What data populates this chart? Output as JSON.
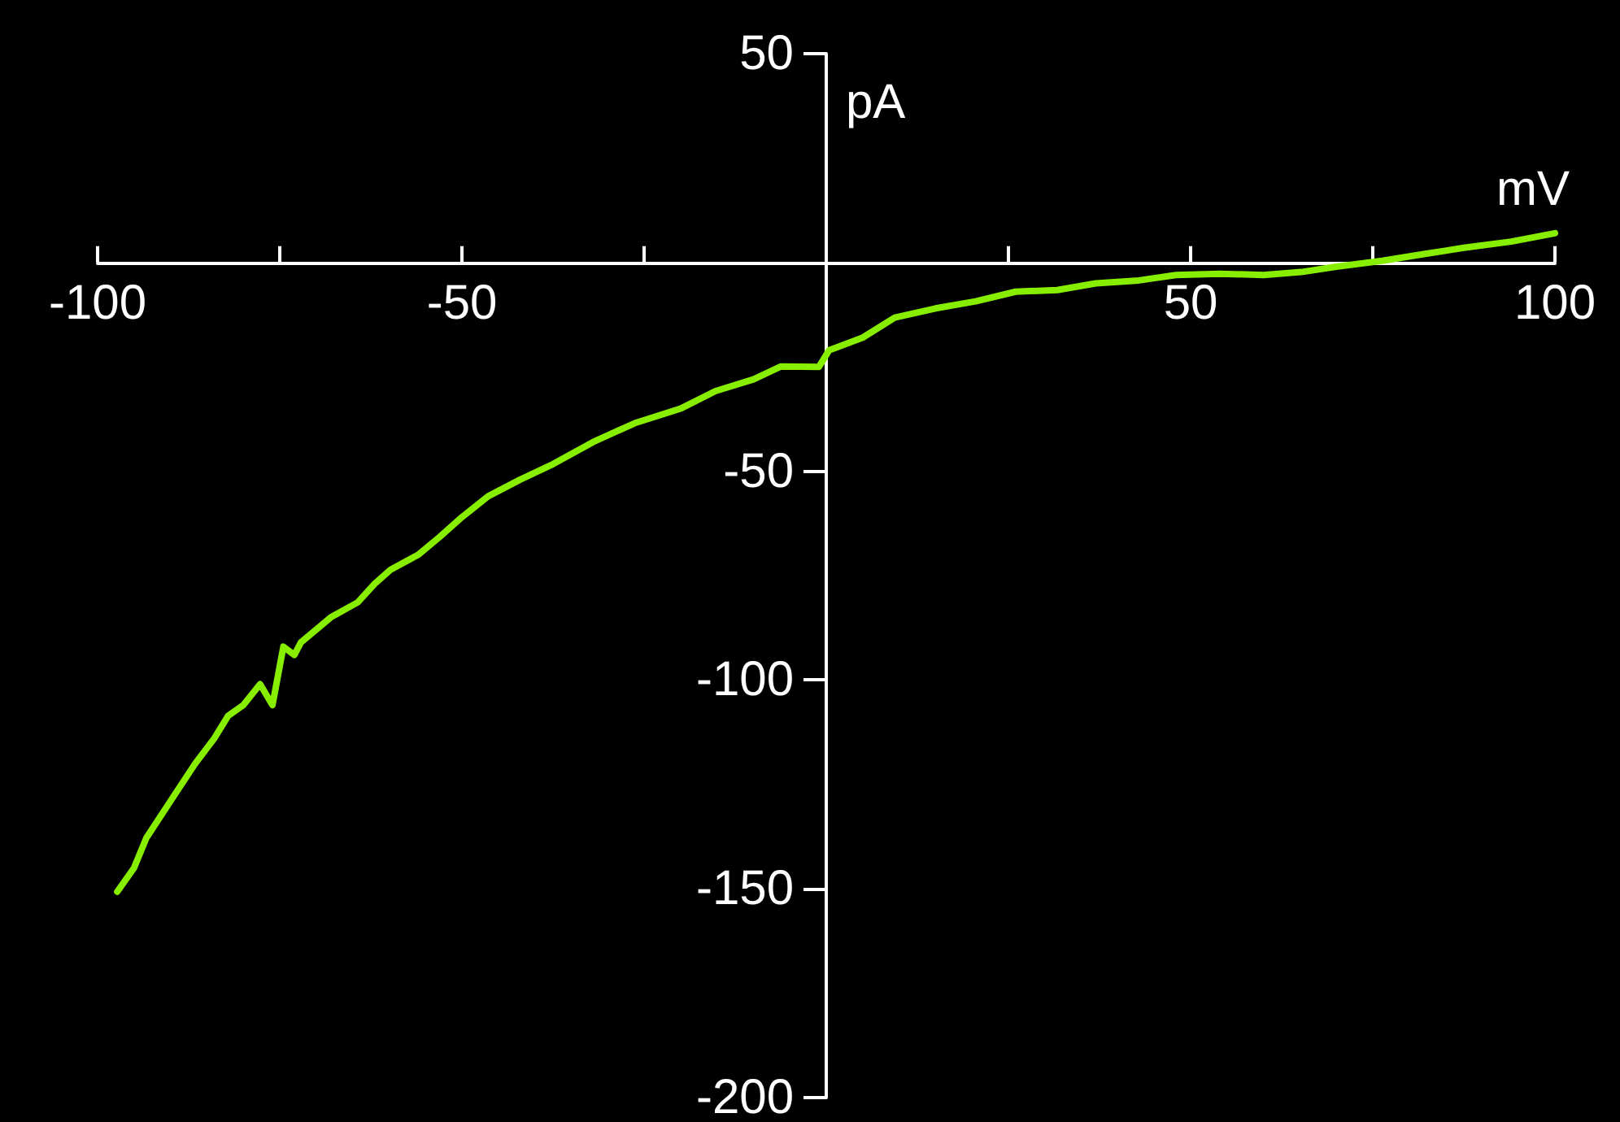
{
  "chart_data": {
    "type": "line",
    "xlabel": "mV",
    "ylabel": "pA",
    "x": [
      -97.3,
      -95,
      -93.3,
      -90,
      -86.6,
      -84,
      -82.1,
      -80,
      -77.7,
      -76,
      -74.5,
      -73,
      -72.1,
      -68,
      -64.3,
      -62,
      -59.8,
      -56,
      -53.1,
      -50,
      -46.4,
      -42,
      -37.5,
      -32,
      -26.3,
      -20,
      -15.2,
      -10,
      -6.2,
      -1,
      0.4,
      5,
      9.4,
      15,
      20.5,
      26,
      31.7,
      37,
      42.9,
      48,
      54,
      60,
      65.2,
      70,
      76.3,
      82,
      87.5,
      94,
      100
    ],
    "series": [
      {
        "color": "#88ee00",
        "values": [
          -150.7,
          -145,
          -137.8,
          -129,
          -120,
          -114,
          -108.6,
          -106,
          -101,
          -106,
          -92,
          -94,
          -91,
          -85,
          -81.4,
          -77,
          -73.6,
          -70,
          -65.8,
          -61,
          -56,
          -52,
          -48.3,
          -43,
          -38.5,
          -35,
          -30.8,
          -28,
          -24.9,
          -25,
          -21,
          -18,
          -13.2,
          -11,
          -9.3,
          -7,
          -6.6,
          -5,
          -4.3,
          -3,
          -2.7,
          -3,
          -2.3,
          -1,
          0.4,
          2,
          3.5,
          5,
          7
        ]
      }
    ],
    "xlim": [
      -100,
      100
    ],
    "ylim": [
      -200,
      50
    ],
    "xticks": [
      -100,
      {
        "value": -75,
        "label": null
      },
      -50,
      {
        "value": -25,
        "label": null
      },
      {
        "value": 0,
        "label": null
      },
      {
        "value": 25,
        "label": null
      },
      50,
      {
        "value": 75,
        "label": null
      },
      100
    ],
    "yticks": [
      -200,
      -150,
      -100,
      -50,
      {
        "value": 0,
        "label": null
      },
      50
    ],
    "grid": false,
    "marker": "none",
    "line_style": "solid"
  }
}
